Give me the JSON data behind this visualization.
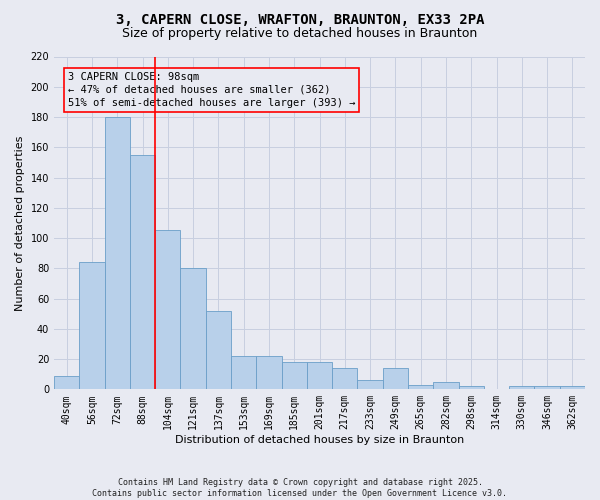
{
  "title": "3, CAPERN CLOSE, WRAFTON, BRAUNTON, EX33 2PA",
  "subtitle": "Size of property relative to detached houses in Braunton",
  "xlabel": "Distribution of detached houses by size in Braunton",
  "ylabel": "Number of detached properties",
  "background_color": "#e8eaf2",
  "bar_color": "#b8d0ea",
  "bar_edge_color": "#6a9ec8",
  "categories": [
    "40sqm",
    "56sqm",
    "72sqm",
    "88sqm",
    "104sqm",
    "121sqm",
    "137sqm",
    "153sqm",
    "169sqm",
    "185sqm",
    "201sqm",
    "217sqm",
    "233sqm",
    "249sqm",
    "265sqm",
    "282sqm",
    "298sqm",
    "314sqm",
    "330sqm",
    "346sqm",
    "362sqm"
  ],
  "values": [
    9,
    84,
    180,
    155,
    105,
    80,
    52,
    22,
    22,
    18,
    18,
    14,
    6,
    14,
    3,
    5,
    2,
    0,
    2,
    2,
    2
  ],
  "ylim": [
    0,
    220
  ],
  "yticks": [
    0,
    20,
    40,
    60,
    80,
    100,
    120,
    140,
    160,
    180,
    200,
    220
  ],
  "red_line_x": 3.5,
  "annotation_line1": "3 CAPERN CLOSE: 98sqm",
  "annotation_line2": "← 47% of detached houses are smaller (362)",
  "annotation_line3": "51% of semi-detached houses are larger (393) →",
  "footer": "Contains HM Land Registry data © Crown copyright and database right 2025.\nContains public sector information licensed under the Open Government Licence v3.0.",
  "grid_color": "#c8cfe0",
  "title_fontsize": 10,
  "subtitle_fontsize": 9,
  "axis_label_fontsize": 8,
  "tick_fontsize": 7,
  "annotation_fontsize": 7.5,
  "footer_fontsize": 6
}
